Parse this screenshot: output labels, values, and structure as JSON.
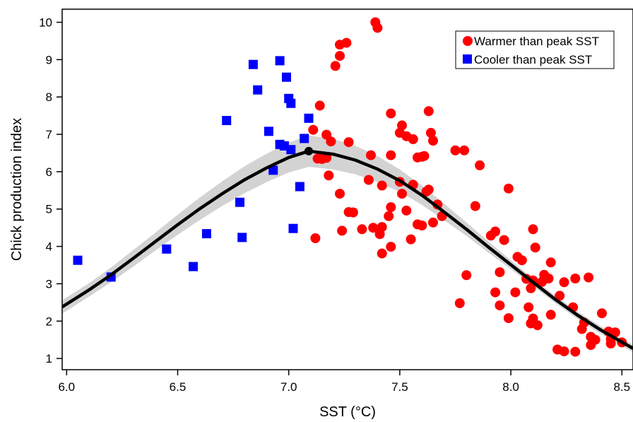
{
  "chart_data": {
    "type": "scatter",
    "xlabel": "SST (°C)",
    "ylabel": "Chick production index",
    "xlim": [
      5.98,
      8.55
    ],
    "ylim": [
      0.7,
      10.35
    ],
    "xticks": [
      "6.0",
      "6.5",
      "7.0",
      "7.5",
      "8.0",
      "8.5"
    ],
    "yticks": [
      "1",
      "2",
      "3",
      "4",
      "5",
      "6",
      "7",
      "8",
      "9",
      "10"
    ],
    "legend": {
      "placement": "top-right"
    },
    "series": [
      {
        "name": "Warmer than peak SST",
        "marker": "circle",
        "color": "#ff0000",
        "points": [
          [
            7.39,
            10.0
          ],
          [
            7.4,
            9.85
          ],
          [
            7.23,
            9.4
          ],
          [
            7.26,
            9.45
          ],
          [
            7.23,
            9.1
          ],
          [
            7.21,
            8.83
          ],
          [
            7.14,
            7.77
          ],
          [
            7.46,
            7.56
          ],
          [
            7.63,
            7.62
          ],
          [
            7.11,
            7.12
          ],
          [
            7.17,
            6.99
          ],
          [
            7.51,
            7.24
          ],
          [
            7.5,
            7.04
          ],
          [
            7.53,
            6.95
          ],
          [
            7.64,
            7.04
          ],
          [
            7.56,
            6.87
          ],
          [
            7.65,
            6.83
          ],
          [
            7.19,
            6.81
          ],
          [
            7.27,
            6.79
          ],
          [
            7.75,
            6.57
          ],
          [
            7.79,
            6.57
          ],
          [
            7.61,
            6.42
          ],
          [
            7.58,
            6.38
          ],
          [
            7.6,
            6.4
          ],
          [
            7.37,
            6.44
          ],
          [
            7.46,
            6.44
          ],
          [
            7.13,
            6.35
          ],
          [
            7.15,
            6.34
          ],
          [
            7.17,
            6.37
          ],
          [
            7.86,
            6.17
          ],
          [
            7.18,
            5.9
          ],
          [
            7.36,
            5.78
          ],
          [
            7.5,
            5.73
          ],
          [
            7.56,
            5.65
          ],
          [
            7.42,
            5.63
          ],
          [
            7.99,
            5.55
          ],
          [
            7.63,
            5.52
          ],
          [
            7.51,
            5.41
          ],
          [
            7.23,
            5.41
          ],
          [
            7.62,
            5.47
          ],
          [
            7.67,
            5.12
          ],
          [
            7.84,
            5.08
          ],
          [
            7.46,
            5.05
          ],
          [
            7.53,
            4.96
          ],
          [
            7.45,
            4.81
          ],
          [
            7.69,
            4.81
          ],
          [
            7.27,
            4.92
          ],
          [
            7.29,
            4.91
          ],
          [
            7.58,
            4.59
          ],
          [
            7.6,
            4.56
          ],
          [
            7.65,
            4.64
          ],
          [
            7.38,
            4.5
          ],
          [
            7.42,
            4.52
          ],
          [
            7.33,
            4.46
          ],
          [
            7.24,
            4.42
          ],
          [
            7.41,
            4.33
          ],
          [
            7.12,
            4.22
          ],
          [
            7.55,
            4.19
          ],
          [
            7.93,
            4.4
          ],
          [
            7.91,
            4.29
          ],
          [
            7.97,
            4.17
          ],
          [
            8.1,
            4.46
          ],
          [
            7.46,
            3.99
          ],
          [
            7.42,
            3.81
          ],
          [
            8.11,
            3.97
          ],
          [
            8.03,
            3.72
          ],
          [
            8.05,
            3.63
          ],
          [
            8.18,
            3.57
          ],
          [
            7.95,
            3.31
          ],
          [
            7.8,
            3.23
          ],
          [
            8.15,
            3.24
          ],
          [
            8.07,
            3.13
          ],
          [
            8.1,
            3.09
          ],
          [
            8.14,
            3.05
          ],
          [
            8.17,
            3.14
          ],
          [
            8.24,
            3.04
          ],
          [
            8.29,
            3.14
          ],
          [
            8.35,
            3.17
          ],
          [
            8.09,
            2.88
          ],
          [
            7.93,
            2.77
          ],
          [
            8.02,
            2.77
          ],
          [
            8.22,
            2.68
          ],
          [
            7.77,
            2.48
          ],
          [
            7.95,
            2.42
          ],
          [
            8.08,
            2.37
          ],
          [
            8.28,
            2.37
          ],
          [
            8.41,
            2.21
          ],
          [
            8.18,
            2.17
          ],
          [
            8.1,
            2.07
          ],
          [
            7.99,
            2.08
          ],
          [
            8.09,
            1.94
          ],
          [
            8.12,
            1.89
          ],
          [
            8.33,
            1.96
          ],
          [
            8.32,
            1.79
          ],
          [
            8.44,
            1.72
          ],
          [
            8.47,
            1.7
          ],
          [
            8.36,
            1.58
          ],
          [
            8.45,
            1.52
          ],
          [
            8.38,
            1.5
          ],
          [
            8.45,
            1.4
          ],
          [
            8.5,
            1.43
          ],
          [
            8.36,
            1.36
          ],
          [
            8.21,
            1.24
          ],
          [
            8.24,
            1.19
          ],
          [
            8.29,
            1.18
          ]
        ]
      },
      {
        "name": "Cooler than peak SST",
        "marker": "square",
        "color": "#0000ff",
        "points": [
          [
            6.96,
            8.97
          ],
          [
            6.84,
            8.87
          ],
          [
            6.99,
            8.53
          ],
          [
            6.86,
            8.19
          ],
          [
            7.0,
            7.96
          ],
          [
            7.01,
            7.83
          ],
          [
            7.09,
            7.43
          ],
          [
            6.72,
            7.37
          ],
          [
            6.91,
            7.08
          ],
          [
            7.07,
            6.89
          ],
          [
            6.96,
            6.73
          ],
          [
            6.98,
            6.69
          ],
          [
            7.01,
            6.59
          ],
          [
            6.93,
            6.04
          ],
          [
            7.05,
            5.6
          ],
          [
            6.78,
            5.18
          ],
          [
            7.02,
            4.48
          ],
          [
            6.63,
            4.34
          ],
          [
            6.79,
            4.24
          ],
          [
            6.45,
            3.93
          ],
          [
            6.05,
            3.63
          ],
          [
            6.57,
            3.46
          ],
          [
            6.2,
            3.18
          ]
        ]
      }
    ],
    "fit_curve": {
      "color": "#000000",
      "x": [
        5.98,
        6.1,
        6.2,
        6.3,
        6.4,
        6.5,
        6.6,
        6.7,
        6.8,
        6.9,
        7.0,
        7.09,
        7.2,
        7.3,
        7.4,
        7.5,
        7.6,
        7.7,
        7.8,
        7.9,
        8.0,
        8.1,
        8.2,
        8.3,
        8.4,
        8.5,
        8.55
      ],
      "y": [
        2.38,
        2.83,
        3.24,
        3.68,
        4.13,
        4.58,
        5.01,
        5.41,
        5.78,
        6.1,
        6.38,
        6.55,
        6.47,
        6.31,
        6.07,
        5.76,
        5.37,
        4.92,
        4.46,
        3.98,
        3.51,
        3.04,
        2.58,
        2.16,
        1.78,
        1.44,
        1.27
      ],
      "peak": [
        7.09,
        6.55
      ],
      "band_halfwidth": [
        0.18,
        0.18,
        0.2,
        0.22,
        0.24,
        0.27,
        0.3,
        0.33,
        0.36,
        0.38,
        0.4,
        0.42,
        0.41,
        0.38,
        0.35,
        0.3,
        0.26,
        0.22,
        0.18,
        0.15,
        0.12,
        0.1,
        0.1,
        0.1,
        0.1,
        0.1,
        0.1
      ],
      "band_color": "#d3d3d3"
    }
  }
}
